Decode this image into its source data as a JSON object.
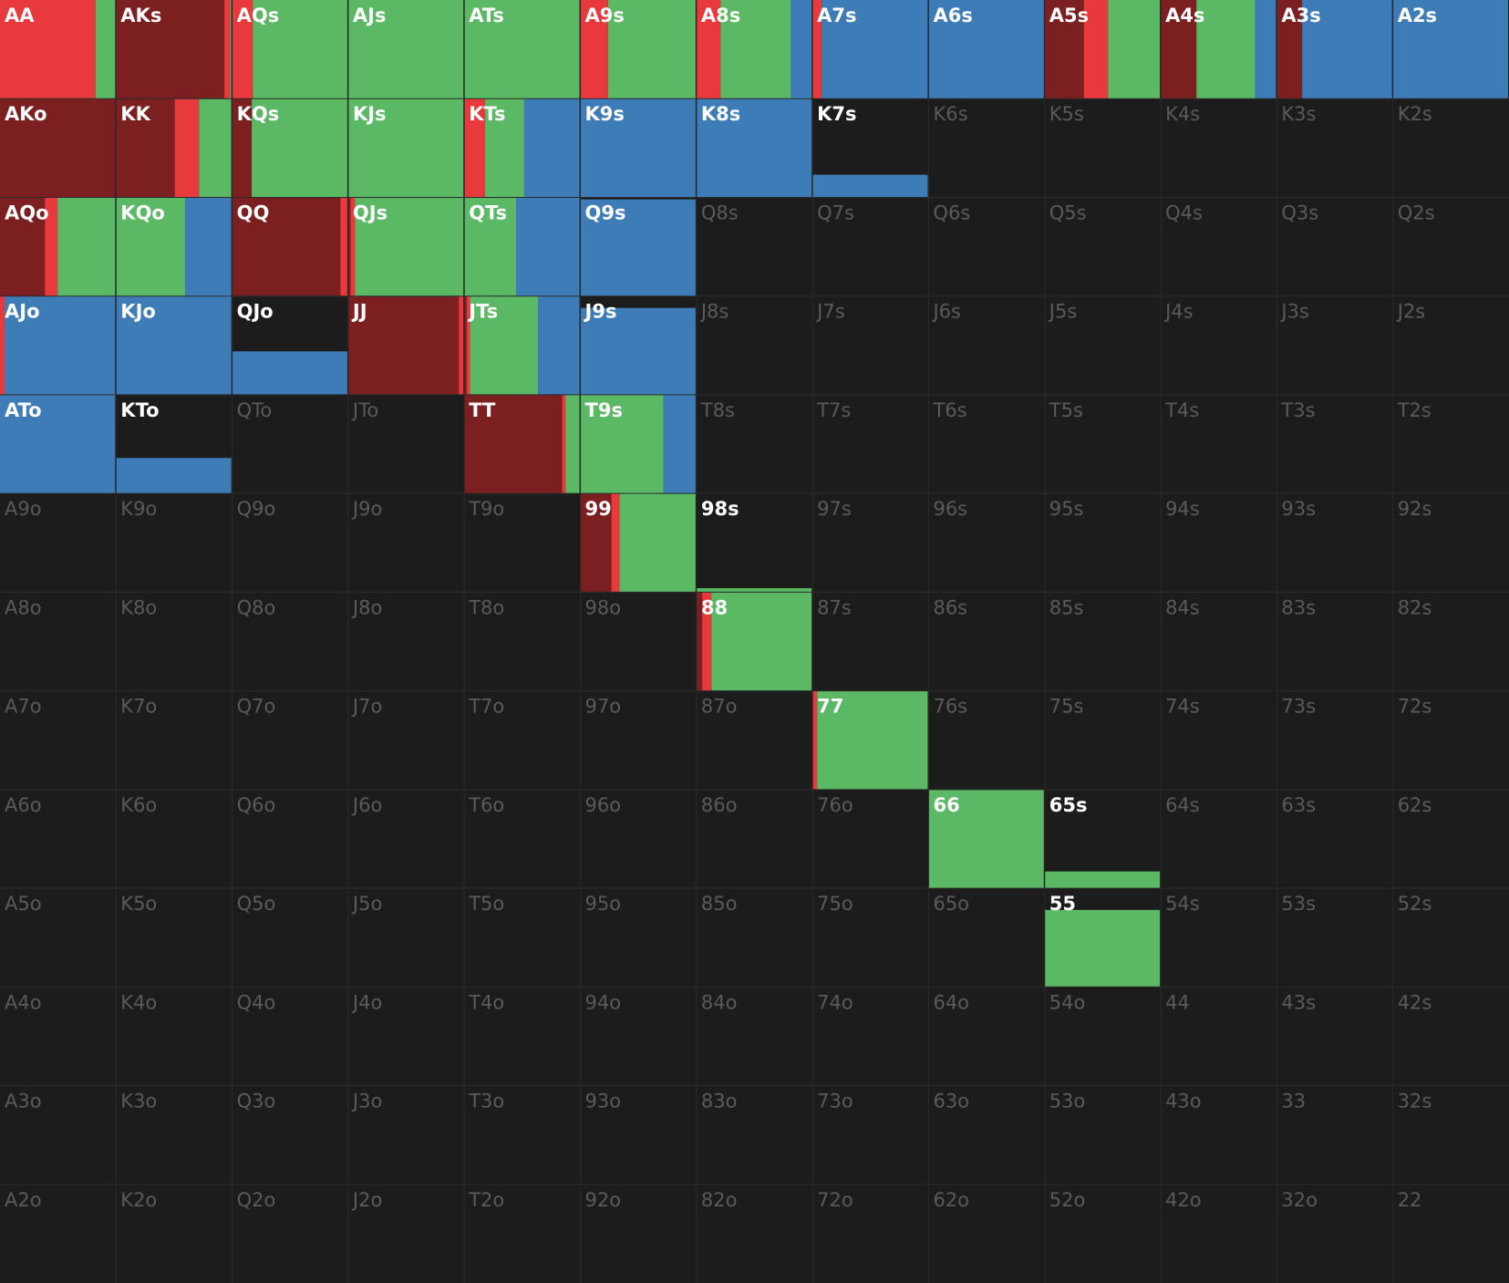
{
  "action_colors": [
    "#7b1f20",
    "#e8393c",
    "#5bb865",
    "#3e7cb8"
  ],
  "grid": [
    [
      {
        "label": "AA",
        "weight": 100,
        "mix": [
          0,
          83,
          17,
          0
        ]
      },
      {
        "label": "AKs",
        "weight": 100,
        "mix": [
          94,
          5,
          1,
          0
        ]
      },
      {
        "label": "AQs",
        "weight": 100,
        "mix": [
          0,
          18,
          82,
          0
        ]
      },
      {
        "label": "AJs",
        "weight": 100,
        "mix": [
          0,
          0,
          100,
          0
        ]
      },
      {
        "label": "ATs",
        "weight": 100,
        "mix": [
          0,
          0,
          100,
          0
        ]
      },
      {
        "label": "A9s",
        "weight": 100,
        "mix": [
          0,
          24,
          76,
          0
        ]
      },
      {
        "label": "A8s",
        "weight": 100,
        "mix": [
          0,
          21,
          61,
          18
        ]
      },
      {
        "label": "A7s",
        "weight": 100,
        "mix": [
          0,
          8,
          0,
          92
        ]
      },
      {
        "label": "A6s",
        "weight": 100,
        "mix": [
          0,
          0,
          0,
          100
        ]
      },
      {
        "label": "A5s",
        "weight": 100,
        "mix": [
          34,
          21,
          45,
          0
        ]
      },
      {
        "label": "A4s",
        "weight": 100,
        "mix": [
          31,
          0,
          51,
          18
        ]
      },
      {
        "label": "A3s",
        "weight": 100,
        "mix": [
          22,
          0,
          0,
          78
        ]
      },
      {
        "label": "A2s",
        "weight": 100,
        "mix": [
          0,
          0,
          0,
          100
        ]
      }
    ],
    [
      {
        "label": "AKo",
        "weight": 100,
        "mix": [
          100,
          0,
          0,
          0
        ]
      },
      {
        "label": "KK",
        "weight": 100,
        "mix": [
          51,
          21,
          28,
          0
        ]
      },
      {
        "label": "KQs",
        "weight": 100,
        "mix": [
          17,
          0,
          83,
          0
        ]
      },
      {
        "label": "KJs",
        "weight": 100,
        "mix": [
          0,
          0,
          100,
          0
        ]
      },
      {
        "label": "KTs",
        "weight": 100,
        "mix": [
          0,
          18,
          34,
          48
        ]
      },
      {
        "label": "K9s",
        "weight": 100,
        "mix": [
          0,
          0,
          0,
          100
        ]
      },
      {
        "label": "K8s",
        "weight": 100,
        "mix": [
          0,
          0,
          0,
          100
        ]
      },
      {
        "label": "K7s",
        "weight": 23,
        "mix": [
          0,
          0,
          0,
          100
        ]
      },
      {
        "label": "K6s",
        "weight": 0
      },
      {
        "label": "K5s",
        "weight": 0
      },
      {
        "label": "K4s",
        "weight": 0
      },
      {
        "label": "K3s",
        "weight": 0
      },
      {
        "label": "K2s",
        "weight": 0
      }
    ],
    [
      {
        "label": "AQo",
        "weight": 100,
        "mix": [
          39,
          11,
          50,
          0
        ]
      },
      {
        "label": "KQo",
        "weight": 100,
        "mix": [
          0,
          0,
          60,
          40
        ]
      },
      {
        "label": "QQ",
        "weight": 100,
        "mix": [
          94,
          6,
          0,
          0
        ]
      },
      {
        "label": "QJs",
        "weight": 100,
        "mix": [
          2,
          4,
          94,
          0
        ]
      },
      {
        "label": "QTs",
        "weight": 100,
        "mix": [
          0,
          0,
          45,
          55
        ]
      },
      {
        "label": "Q9s",
        "weight": 98,
        "mix": [
          0,
          0,
          0,
          100
        ]
      },
      {
        "label": "Q8s",
        "weight": 0
      },
      {
        "label": "Q7s",
        "weight": 0
      },
      {
        "label": "Q6s",
        "weight": 0
      },
      {
        "label": "Q5s",
        "weight": 0
      },
      {
        "label": "Q4s",
        "weight": 0
      },
      {
        "label": "Q3s",
        "weight": 0
      },
      {
        "label": "Q2s",
        "weight": 0
      }
    ],
    [
      {
        "label": "AJo",
        "weight": 100,
        "mix": [
          0,
          4,
          0,
          96
        ]
      },
      {
        "label": "KJo",
        "weight": 100,
        "mix": [
          0,
          0,
          0,
          100
        ]
      },
      {
        "label": "QJo",
        "weight": 44,
        "mix": [
          0,
          0,
          0,
          100
        ]
      },
      {
        "label": "JJ",
        "weight": 100,
        "mix": [
          96,
          4,
          0,
          0
        ]
      },
      {
        "label": "JTs",
        "weight": 100,
        "mix": [
          2,
          3,
          59,
          36
        ]
      },
      {
        "label": "J9s",
        "weight": 88,
        "mix": [
          0,
          0,
          0,
          100
        ]
      },
      {
        "label": "J8s",
        "weight": 0
      },
      {
        "label": "J7s",
        "weight": 0
      },
      {
        "label": "J6s",
        "weight": 0
      },
      {
        "label": "J5s",
        "weight": 0
      },
      {
        "label": "J4s",
        "weight": 0
      },
      {
        "label": "J3s",
        "weight": 0
      },
      {
        "label": "J2s",
        "weight": 0
      }
    ],
    [
      {
        "label": "ATo",
        "weight": 100,
        "mix": [
          0,
          0,
          0,
          100
        ]
      },
      {
        "label": "KTo",
        "weight": 36,
        "mix": [
          0,
          0,
          0,
          100
        ]
      },
      {
        "label": "QTo",
        "weight": 0
      },
      {
        "label": "JTo",
        "weight": 0
      },
      {
        "label": "TT",
        "weight": 100,
        "mix": [
          85,
          3,
          12,
          0
        ]
      },
      {
        "label": "T9s",
        "weight": 100,
        "mix": [
          0,
          0,
          72,
          28
        ]
      },
      {
        "label": "T8s",
        "weight": 0
      },
      {
        "label": "T7s",
        "weight": 0
      },
      {
        "label": "T6s",
        "weight": 0
      },
      {
        "label": "T5s",
        "weight": 0
      },
      {
        "label": "T4s",
        "weight": 0
      },
      {
        "label": "T3s",
        "weight": 0
      },
      {
        "label": "T2s",
        "weight": 0
      }
    ],
    [
      {
        "label": "A9o",
        "weight": 0
      },
      {
        "label": "K9o",
        "weight": 0
      },
      {
        "label": "Q9o",
        "weight": 0
      },
      {
        "label": "J9o",
        "weight": 0
      },
      {
        "label": "T9o",
        "weight": 0
      },
      {
        "label": "99",
        "weight": 100,
        "mix": [
          27,
          7,
          66,
          0
        ]
      },
      {
        "label": "98s",
        "weight": 4,
        "mix": [
          0,
          0,
          100,
          0
        ]
      },
      {
        "label": "97s",
        "weight": 0
      },
      {
        "label": "96s",
        "weight": 0
      },
      {
        "label": "95s",
        "weight": 0
      },
      {
        "label": "94s",
        "weight": 0
      },
      {
        "label": "93s",
        "weight": 0
      },
      {
        "label": "92s",
        "weight": 0
      }
    ],
    [
      {
        "label": "A8o",
        "weight": 0
      },
      {
        "label": "K8o",
        "weight": 0
      },
      {
        "label": "Q8o",
        "weight": 0
      },
      {
        "label": "J8o",
        "weight": 0
      },
      {
        "label": "T8o",
        "weight": 0
      },
      {
        "label": "98o",
        "weight": 0
      },
      {
        "label": "88",
        "weight": 100,
        "mix": [
          5,
          8,
          87,
          0
        ]
      },
      {
        "label": "87s",
        "weight": 0
      },
      {
        "label": "86s",
        "weight": 0
      },
      {
        "label": "85s",
        "weight": 0
      },
      {
        "label": "84s",
        "weight": 0
      },
      {
        "label": "83s",
        "weight": 0
      },
      {
        "label": "82s",
        "weight": 0
      }
    ],
    [
      {
        "label": "A7o",
        "weight": 0
      },
      {
        "label": "K7o",
        "weight": 0
      },
      {
        "label": "Q7o",
        "weight": 0
      },
      {
        "label": "J7o",
        "weight": 0
      },
      {
        "label": "T7o",
        "weight": 0
      },
      {
        "label": "97o",
        "weight": 0
      },
      {
        "label": "87o",
        "weight": 0
      },
      {
        "label": "77",
        "weight": 100,
        "mix": [
          0,
          4,
          96,
          0
        ]
      },
      {
        "label": "76s",
        "weight": 0
      },
      {
        "label": "75s",
        "weight": 0
      },
      {
        "label": "74s",
        "weight": 0
      },
      {
        "label": "73s",
        "weight": 0
      },
      {
        "label": "72s",
        "weight": 0
      }
    ],
    [
      {
        "label": "A6o",
        "weight": 0
      },
      {
        "label": "K6o",
        "weight": 0
      },
      {
        "label": "Q6o",
        "weight": 0
      },
      {
        "label": "J6o",
        "weight": 0
      },
      {
        "label": "T6o",
        "weight": 0
      },
      {
        "label": "96o",
        "weight": 0
      },
      {
        "label": "86o",
        "weight": 0
      },
      {
        "label": "76o",
        "weight": 0
      },
      {
        "label": "66",
        "weight": 100,
        "mix": [
          0,
          0,
          100,
          0
        ]
      },
      {
        "label": "65s",
        "weight": 17,
        "mix": [
          0,
          0,
          100,
          0
        ]
      },
      {
        "label": "64s",
        "weight": 0
      },
      {
        "label": "63s",
        "weight": 0
      },
      {
        "label": "62s",
        "weight": 0
      }
    ],
    [
      {
        "label": "A5o",
        "weight": 0
      },
      {
        "label": "K5o",
        "weight": 0
      },
      {
        "label": "Q5o",
        "weight": 0
      },
      {
        "label": "J5o",
        "weight": 0
      },
      {
        "label": "T5o",
        "weight": 0
      },
      {
        "label": "95o",
        "weight": 0
      },
      {
        "label": "85o",
        "weight": 0
      },
      {
        "label": "75o",
        "weight": 0
      },
      {
        "label": "65o",
        "weight": 0
      },
      {
        "label": "55",
        "weight": 78,
        "mix": [
          0,
          0,
          100,
          0
        ]
      },
      {
        "label": "54s",
        "weight": 0
      },
      {
        "label": "53s",
        "weight": 0
      },
      {
        "label": "52s",
        "weight": 0
      }
    ],
    [
      {
        "label": "A4o",
        "weight": 0
      },
      {
        "label": "K4o",
        "weight": 0
      },
      {
        "label": "Q4o",
        "weight": 0
      },
      {
        "label": "J4o",
        "weight": 0
      },
      {
        "label": "T4o",
        "weight": 0
      },
      {
        "label": "94o",
        "weight": 0
      },
      {
        "label": "84o",
        "weight": 0
      },
      {
        "label": "74o",
        "weight": 0
      },
      {
        "label": "64o",
        "weight": 0
      },
      {
        "label": "54o",
        "weight": 0
      },
      {
        "label": "44",
        "weight": 0
      },
      {
        "label": "43s",
        "weight": 0
      },
      {
        "label": "42s",
        "weight": 0
      }
    ],
    [
      {
        "label": "A3o",
        "weight": 0
      },
      {
        "label": "K3o",
        "weight": 0
      },
      {
        "label": "Q3o",
        "weight": 0
      },
      {
        "label": "J3o",
        "weight": 0
      },
      {
        "label": "T3o",
        "weight": 0
      },
      {
        "label": "93o",
        "weight": 0
      },
      {
        "label": "83o",
        "weight": 0
      },
      {
        "label": "73o",
        "weight": 0
      },
      {
        "label": "63o",
        "weight": 0
      },
      {
        "label": "53o",
        "weight": 0
      },
      {
        "label": "43o",
        "weight": 0
      },
      {
        "label": "33",
        "weight": 0
      },
      {
        "label": "32s",
        "weight": 0
      }
    ],
    [
      {
        "label": "A2o",
        "weight": 0
      },
      {
        "label": "K2o",
        "weight": 0
      },
      {
        "label": "Q2o",
        "weight": 0
      },
      {
        "label": "J2o",
        "weight": 0
      },
      {
        "label": "T2o",
        "weight": 0
      },
      {
        "label": "92o",
        "weight": 0
      },
      {
        "label": "82o",
        "weight": 0
      },
      {
        "label": "72o",
        "weight": 0
      },
      {
        "label": "62o",
        "weight": 0
      },
      {
        "label": "52o",
        "weight": 0
      },
      {
        "label": "42o",
        "weight": 0
      },
      {
        "label": "32o",
        "weight": 0
      },
      {
        "label": "22",
        "weight": 0
      }
    ]
  ]
}
